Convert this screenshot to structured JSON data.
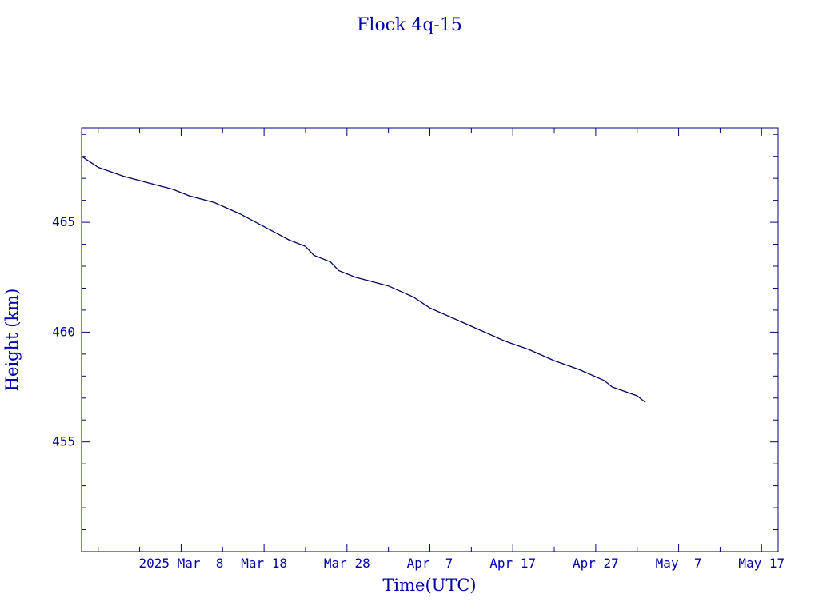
{
  "chart_data": {
    "type": "line",
    "title": "Flock 4q-15",
    "xlabel": "Time(UTC)",
    "ylabel": "Height (km)",
    "xlim": [
      "2025-02-24",
      "2025-05-19"
    ],
    "ylim": [
      450,
      469.3
    ],
    "x_ticks": [
      {
        "label": "2025 Mar  8",
        "date": "2025-03-08"
      },
      {
        "label": "Mar 18",
        "date": "2025-03-18"
      },
      {
        "label": "Mar 28",
        "date": "2025-03-28"
      },
      {
        "label": "Apr  7",
        "date": "2025-04-07"
      },
      {
        "label": "Apr 17",
        "date": "2025-04-17"
      },
      {
        "label": "Apr 27",
        "date": "2025-04-27"
      },
      {
        "label": "May  7",
        "date": "2025-05-07"
      },
      {
        "label": "May 17",
        "date": "2025-05-17"
      }
    ],
    "y_ticks": [
      {
        "label": "455",
        "value": 455
      },
      {
        "label": "460",
        "value": 460
      },
      {
        "label": "465",
        "value": 465
      }
    ],
    "grid": false,
    "colors": {
      "axes": "#000080",
      "line": "#000060",
      "text": "#0000a8"
    },
    "series": [
      {
        "x": [
          "2025-02-24",
          "2025-02-26",
          "2025-03-01",
          "2025-03-04",
          "2025-03-07",
          "2025-03-09",
          "2025-03-12",
          "2025-03-15",
          "2025-03-18",
          "2025-03-21",
          "2025-03-23",
          "2025-03-24",
          "2025-03-26",
          "2025-03-27",
          "2025-03-29",
          "2025-04-02",
          "2025-04-05",
          "2025-04-07",
          "2025-04-10",
          "2025-04-13",
          "2025-04-16",
          "2025-04-19",
          "2025-04-22",
          "2025-04-25",
          "2025-04-28",
          "2025-04-29",
          "2025-05-02",
          "2025-05-03"
        ],
        "y": [
          468.0,
          467.5,
          467.1,
          466.8,
          466.5,
          466.2,
          465.9,
          465.4,
          464.8,
          464.2,
          463.9,
          463.5,
          463.2,
          462.8,
          462.5,
          462.1,
          461.6,
          461.1,
          460.6,
          460.1,
          459.6,
          459.2,
          458.7,
          458.3,
          457.8,
          457.5,
          457.1,
          456.8
        ]
      }
    ]
  }
}
